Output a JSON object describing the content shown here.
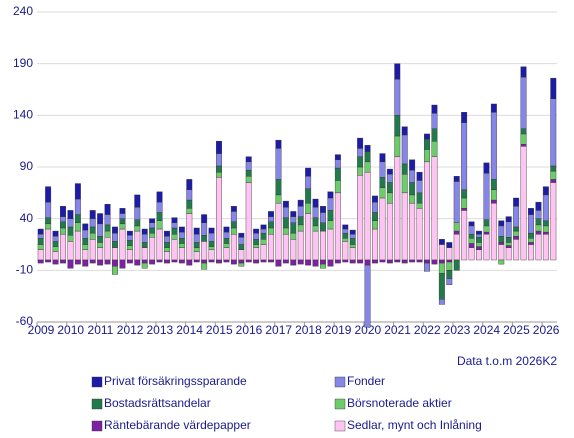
{
  "chart_data": {
    "type": "stacked-bar",
    "note": "Data t.o.m  2026K2",
    "categories": [
      "2009",
      null,
      null,
      null,
      "2010",
      null,
      null,
      null,
      "2011",
      null,
      null,
      null,
      "2012",
      null,
      null,
      null,
      "2013",
      null,
      null,
      null,
      "2014",
      null,
      null,
      null,
      "2015",
      null,
      null,
      null,
      "2016",
      null,
      null,
      null,
      "2017",
      null,
      null,
      null,
      "2018",
      null,
      null,
      null,
      "2019",
      null,
      null,
      null,
      "2020",
      null,
      null,
      null,
      "2021",
      null,
      null,
      null,
      "2022",
      null,
      null,
      null,
      "2023",
      null,
      null,
      null,
      "2024",
      null,
      null,
      null,
      "2025",
      null,
      null,
      null,
      "2026",
      null
    ],
    "ylim": [
      -60,
      240
    ],
    "yticks": [
      -60,
      -10,
      40,
      90,
      140,
      190,
      240
    ],
    "grid": true,
    "series": [
      {
        "name": "Privat försäkringssparande",
        "color": "#1c1ca8",
        "values": [
          5,
          15,
          5,
          10,
          8,
          15,
          6,
          8,
          10,
          10,
          6,
          5,
          4,
          12,
          5,
          4,
          10,
          5,
          5,
          5,
          10,
          6,
          8,
          5,
          12,
          5,
          5,
          4,
          5,
          4,
          4,
          5,
          8,
          6,
          5,
          6,
          8,
          8,
          6,
          6,
          5,
          4,
          4,
          10,
          6,
          6,
          8,
          5,
          15,
          8,
          10,
          8,
          5,
          8,
          5,
          5,
          5,
          10,
          4,
          3,
          10,
          8,
          5,
          5,
          8,
          10,
          6,
          8,
          8,
          20
        ]
      },
      {
        "name": "Fonder",
        "color": "#8686e8",
        "values": [
          4,
          15,
          5,
          5,
          8,
          15,
          8,
          8,
          12,
          10,
          8,
          5,
          5,
          12,
          8,
          5,
          10,
          6,
          5,
          6,
          10,
          8,
          12,
          8,
          12,
          6,
          10,
          7,
          8,
          6,
          4,
          5,
          30,
          10,
          6,
          10,
          12,
          10,
          10,
          12,
          8,
          4,
          4,
          8,
          -60,
          10,
          15,
          8,
          35,
          28,
          12,
          12,
          -8,
          15,
          -5,
          -6,
          40,
          65,
          8,
          3,
          45,
          65,
          10,
          15,
          20,
          50,
          18,
          8,
          25,
          65
        ]
      },
      {
        "name": "Bostadsrättsandelar",
        "color": "#217a4c",
        "values": [
          6,
          6,
          5,
          6,
          8,
          8,
          6,
          6,
          6,
          6,
          6,
          5,
          5,
          6,
          5,
          5,
          8,
          5,
          6,
          5,
          8,
          5,
          6,
          5,
          6,
          5,
          6,
          5,
          6,
          5,
          6,
          6,
          15,
          10,
          10,
          8,
          14,
          8,
          8,
          10,
          12,
          5,
          6,
          10,
          10,
          8,
          10,
          10,
          20,
          10,
          12,
          10,
          10,
          12,
          -25,
          -8,
          -10,
          8,
          4,
          5,
          6,
          10,
          6,
          5,
          4,
          5,
          5,
          6,
          5,
          5
        ]
      },
      {
        "name": "Börsnoterade aktier",
        "color": "#6ccc6c",
        "values": [
          5,
          5,
          5,
          6,
          6,
          8,
          5,
          6,
          5,
          6,
          -8,
          5,
          4,
          5,
          -5,
          4,
          8,
          4,
          5,
          4,
          5,
          4,
          -6,
          3,
          5,
          4,
          6,
          -3,
          6,
          3,
          5,
          6,
          8,
          6,
          6,
          6,
          10,
          5,
          -4,
          8,
          12,
          3,
          3,
          8,
          10,
          8,
          10,
          10,
          20,
          18,
          8,
          5,
          12,
          15,
          -10,
          -8,
          8,
          10,
          5,
          4,
          6,
          10,
          -4,
          3,
          5,
          10,
          4,
          6,
          6,
          8
        ]
      },
      {
        "name": "Räntebärande värdepapper",
        "color": "#7c20a4",
        "values": [
          -3,
          -2,
          -4,
          -3,
          -8,
          -4,
          -6,
          -3,
          -5,
          -4,
          -6,
          -8,
          -3,
          -5,
          -3,
          -4,
          -2,
          -3,
          -2,
          -3,
          -5,
          -2,
          -3,
          -2,
          -3,
          -2,
          -4,
          -3,
          -2,
          -3,
          -2,
          -2,
          -6,
          -3,
          -5,
          -4,
          -5,
          -6,
          -4,
          -6,
          -3,
          -2,
          -3,
          -3,
          -5,
          -3,
          -2,
          -3,
          -2,
          -3,
          -2,
          -2,
          -3,
          -4,
          -3,
          -2,
          3,
          2,
          4,
          3,
          2,
          3,
          2,
          2,
          3,
          2,
          2,
          3,
          2,
          3
        ]
      },
      {
        "name": "Sedlar, mynt och Inlåning",
        "color": "#ffc4f2",
        "values": [
          10,
          30,
          8,
          25,
          18,
          28,
          10,
          20,
          12,
          22,
          12,
          30,
          10,
          28,
          12,
          22,
          30,
          8,
          20,
          12,
          45,
          8,
          18,
          10,
          80,
          12,
          25,
          10,
          75,
          12,
          15,
          25,
          55,
          25,
          20,
          28,
          45,
          28,
          28,
          30,
          65,
          18,
          12,
          82,
          85,
          30,
          60,
          55,
          100,
          65,
          55,
          50,
          95,
          100,
          15,
          12,
          25,
          48,
          12,
          10,
          25,
          55,
          15,
          12,
          20,
          110,
          15,
          25,
          25,
          75
        ]
      }
    ]
  }
}
